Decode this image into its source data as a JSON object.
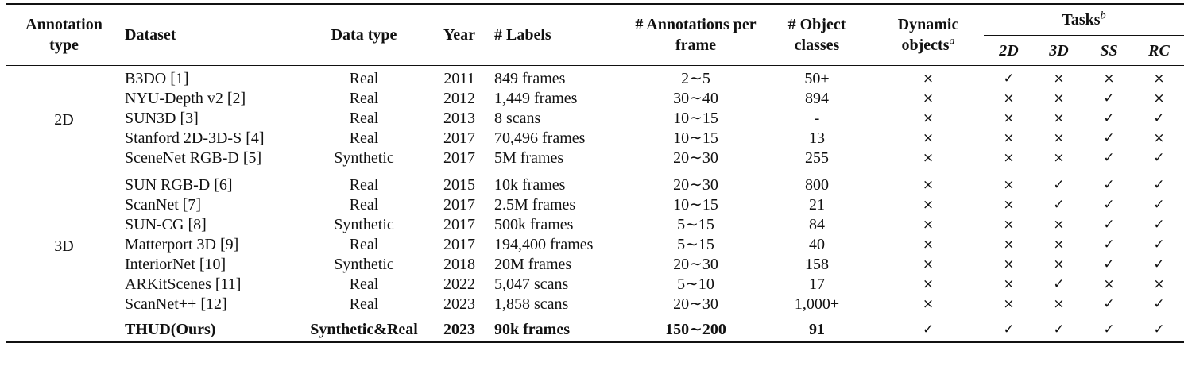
{
  "header": {
    "annotation_type": "Annotation type",
    "dataset": "Dataset",
    "data_type": "Data type",
    "year": "Year",
    "labels": "# Labels",
    "annotations_per_frame": "# Annotations per frame",
    "object_classes": "# Object classes",
    "dynamic_objects": "Dynamic objects",
    "dynamic_sup": "a",
    "tasks": "Tasks",
    "tasks_sup": "b",
    "task_cols": [
      "2D",
      "3D",
      "SS",
      "RC"
    ]
  },
  "groups": [
    {
      "type": "2D",
      "rows": [
        {
          "dataset": "B3DO [1]",
          "data_type": "Real",
          "year": "2011",
          "labels": "849 frames",
          "ann": "2∼5",
          "classes": "50+",
          "dyn": "×",
          "t2d": "✓",
          "t3d": "×",
          "ss": "×",
          "rc": "×"
        },
        {
          "dataset": "NYU-Depth v2 [2]",
          "data_type": "Real",
          "year": "2012",
          "labels": "1,449 frames",
          "ann": "30∼40",
          "classes": "894",
          "dyn": "×",
          "t2d": "×",
          "t3d": "×",
          "ss": "✓",
          "rc": "×"
        },
        {
          "dataset": "SUN3D [3]",
          "data_type": "Real",
          "year": "2013",
          "labels": "8 scans",
          "ann": "10∼15",
          "classes": "-",
          "dyn": "×",
          "t2d": "×",
          "t3d": "×",
          "ss": "✓",
          "rc": "✓"
        },
        {
          "dataset": "Stanford 2D-3D-S [4]",
          "data_type": "Real",
          "year": "2017",
          "labels": "70,496 frames",
          "ann": "10∼15",
          "classes": "13",
          "dyn": "×",
          "t2d": "×",
          "t3d": "×",
          "ss": "✓",
          "rc": "×"
        },
        {
          "dataset": "SceneNet RGB-D [5]",
          "data_type": "Synthetic",
          "year": "2017",
          "labels": "5M frames",
          "ann": "20∼30",
          "classes": "255",
          "dyn": "×",
          "t2d": "×",
          "t3d": "×",
          "ss": "✓",
          "rc": "✓"
        }
      ]
    },
    {
      "type": "3D",
      "rows": [
        {
          "dataset": "SUN RGB-D [6]",
          "data_type": "Real",
          "year": "2015",
          "labels": "10k frames",
          "ann": "20∼30",
          "classes": "800",
          "dyn": "×",
          "t2d": "×",
          "t3d": "✓",
          "ss": "✓",
          "rc": "✓"
        },
        {
          "dataset": "ScanNet [7]",
          "data_type": "Real",
          "year": "2017",
          "labels": "2.5M frames",
          "ann": "10∼15",
          "classes": "21",
          "dyn": "×",
          "t2d": "×",
          "t3d": "✓",
          "ss": "✓",
          "rc": "✓"
        },
        {
          "dataset": "SUN-CG [8]",
          "data_type": "Synthetic",
          "year": "2017",
          "labels": "500k frames",
          "ann": "5∼15",
          "classes": "84",
          "dyn": "×",
          "t2d": "×",
          "t3d": "×",
          "ss": "✓",
          "rc": "✓"
        },
        {
          "dataset": "Matterport 3D [9]",
          "data_type": "Real",
          "year": "2017",
          "labels": "194,400 frames",
          "ann": "5∼15",
          "classes": "40",
          "dyn": "×",
          "t2d": "×",
          "t3d": "×",
          "ss": "✓",
          "rc": "✓"
        },
        {
          "dataset": "InteriorNet [10]",
          "data_type": "Synthetic",
          "year": "2018",
          "labels": "20M frames",
          "ann": "20∼30",
          "classes": "158",
          "dyn": "×",
          "t2d": "×",
          "t3d": "×",
          "ss": "✓",
          "rc": "✓"
        },
        {
          "dataset": "ARKitScenes [11]",
          "data_type": "Real",
          "year": "2022",
          "labels": "5,047 scans",
          "ann": "5∼10",
          "classes": "17",
          "dyn": "×",
          "t2d": "×",
          "t3d": "✓",
          "ss": "×",
          "rc": "×"
        },
        {
          "dataset": "ScanNet++ [12]",
          "data_type": "Real",
          "year": "2023",
          "labels": "1,858 scans",
          "ann": "20∼30",
          "classes": "1,000+",
          "dyn": "×",
          "t2d": "×",
          "t3d": "×",
          "ss": "✓",
          "rc": "✓"
        }
      ]
    }
  ],
  "ours": {
    "dataset": "THUD(Ours)",
    "data_type": "Synthetic&Real",
    "year": "2023",
    "labels": "90k frames",
    "ann": "150∼200",
    "classes": "91",
    "dyn": "✓",
    "t2d": "✓",
    "t3d": "✓",
    "ss": "✓",
    "rc": "✓"
  }
}
